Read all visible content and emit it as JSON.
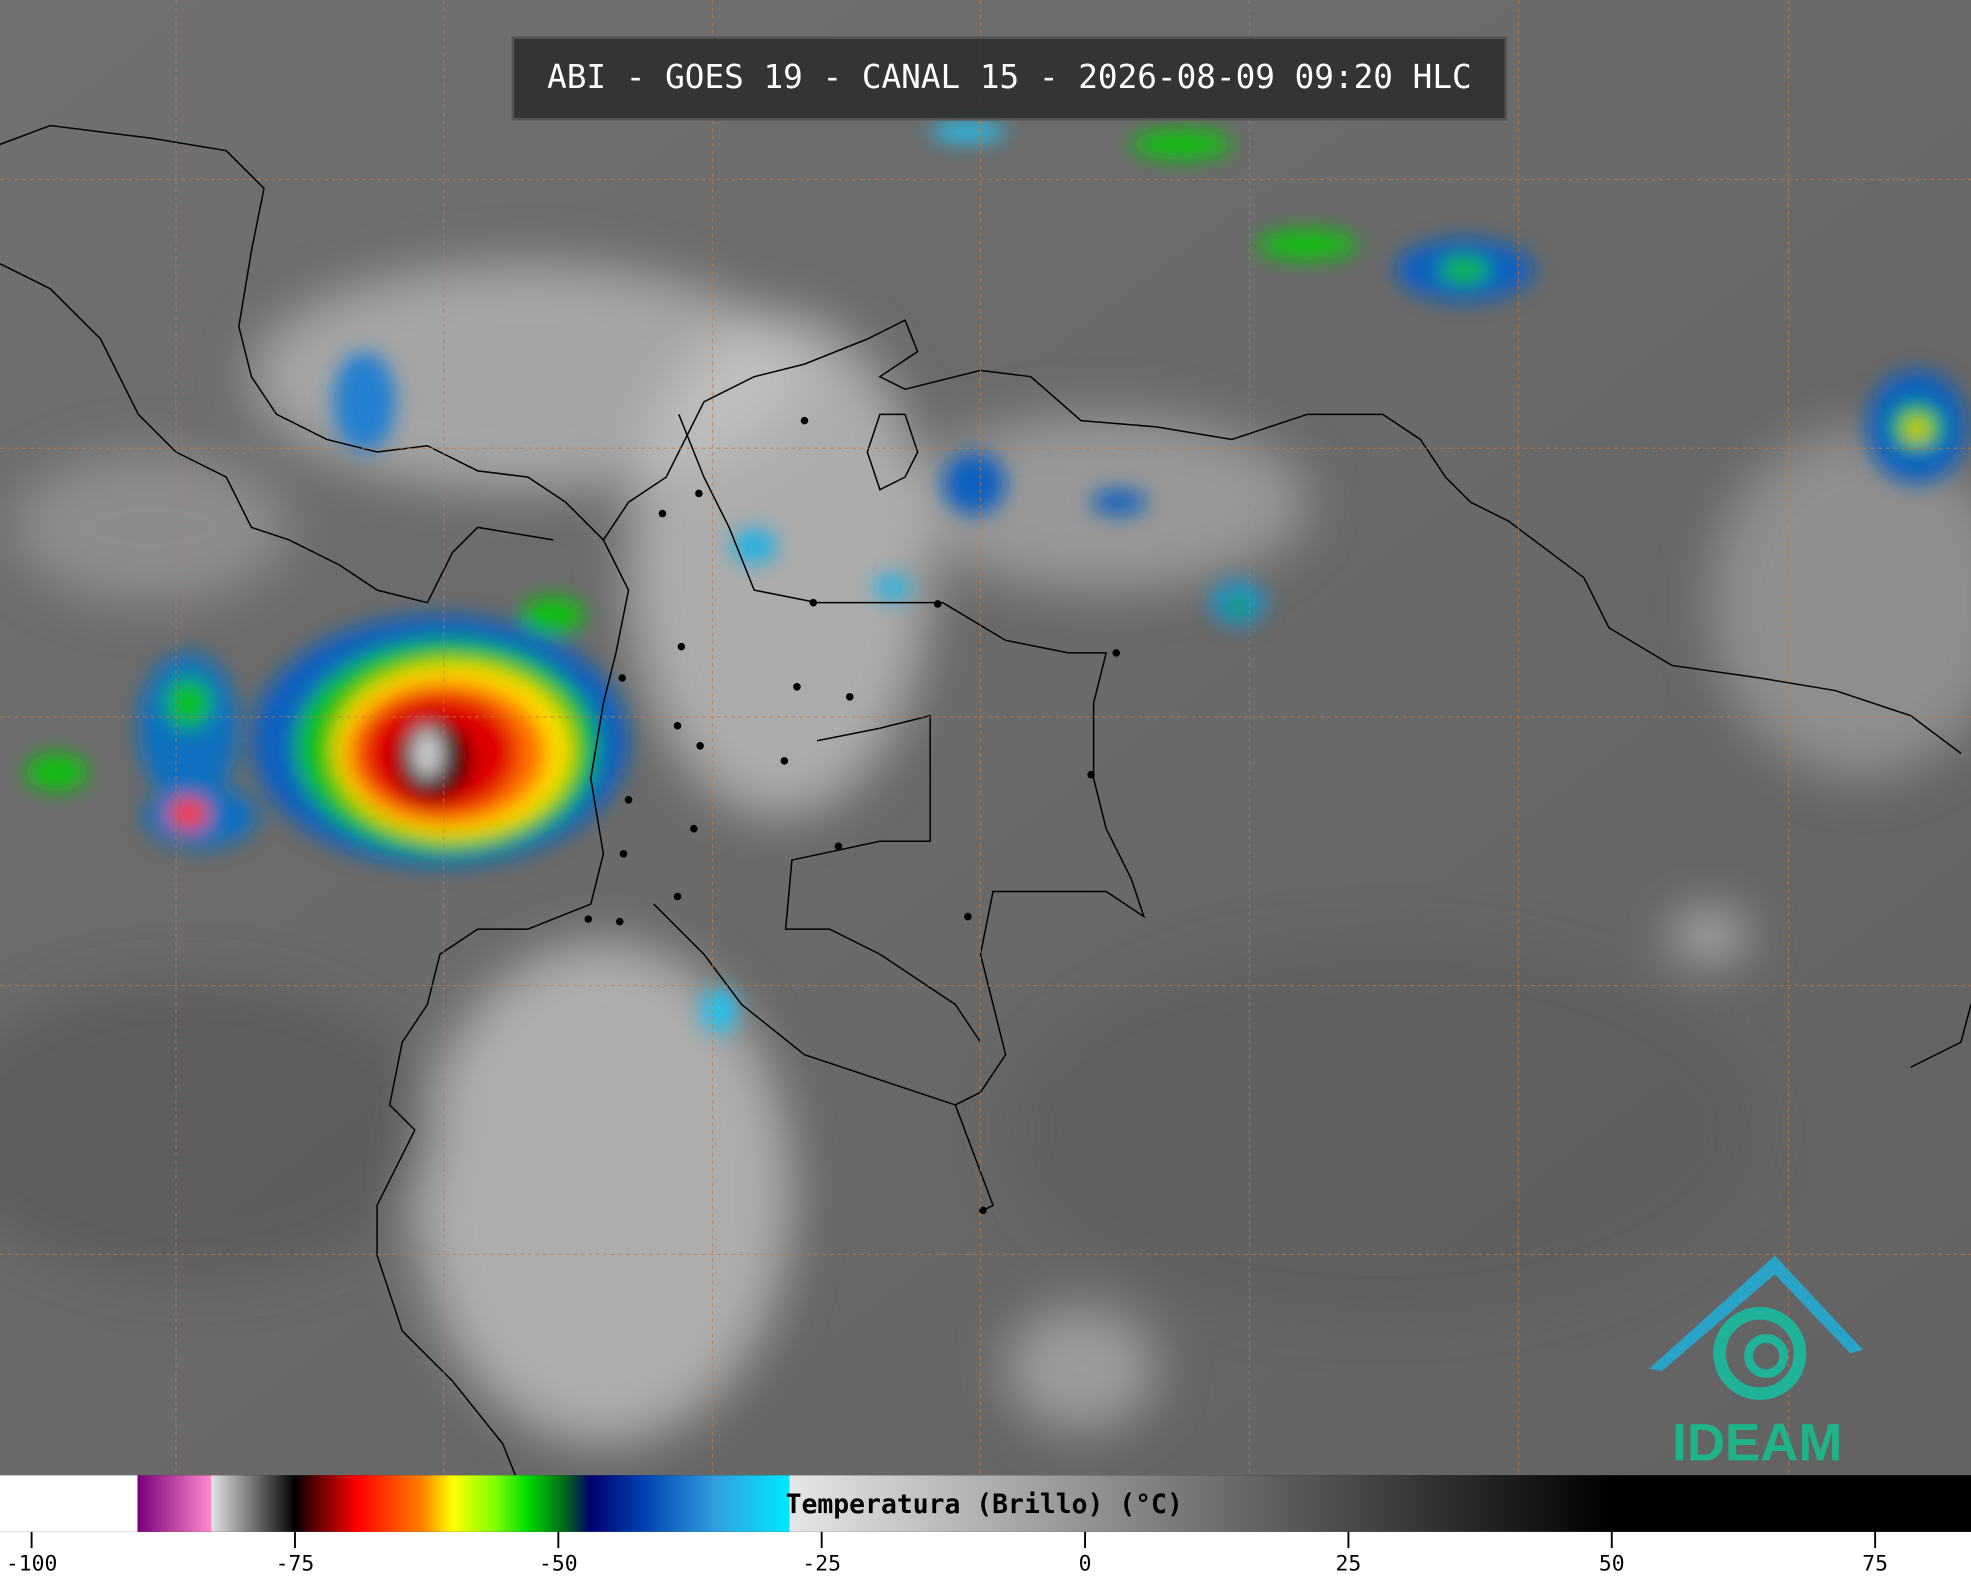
{
  "title": "ABI - GOES 19 - CANAL 15 - 2026-08-09 09:20 HLC",
  "logo": "IDEAM",
  "colorbar": {
    "label": "Temperatura (Brillo) (°C)",
    "xlim": [
      -103,
      84.1
    ],
    "ticks": [
      -100,
      -75,
      -50,
      -25,
      0,
      25,
      50,
      75
    ],
    "colormap": [
      {
        "value": -103,
        "color": "#ffffff"
      },
      {
        "value": -90,
        "color": "#ffffff"
      },
      {
        "value": -89.9,
        "color": "#7a007a"
      },
      {
        "value": -83,
        "color": "#ff88cc"
      },
      {
        "value": -82.9,
        "color": "#e0e0e0"
      },
      {
        "value": -76,
        "color": "#202020"
      },
      {
        "value": -75,
        "color": "#000000"
      },
      {
        "value": -73,
        "color": "#600000"
      },
      {
        "value": -69,
        "color": "#ff0000"
      },
      {
        "value": -63,
        "color": "#ff8000"
      },
      {
        "value": -60,
        "color": "#ffff00"
      },
      {
        "value": -56,
        "color": "#80ff00"
      },
      {
        "value": -53,
        "color": "#00dd00"
      },
      {
        "value": -49,
        "color": "#005a20"
      },
      {
        "value": -47,
        "color": "#000070"
      },
      {
        "value": -42,
        "color": "#0040b0"
      },
      {
        "value": -35,
        "color": "#30a0e0"
      },
      {
        "value": -28.1,
        "color": "#00e8ff"
      },
      {
        "value": -28,
        "color": "#e6e6e6"
      },
      {
        "value": 50,
        "color": "#000000"
      },
      {
        "value": 84.1,
        "color": "#000000"
      }
    ]
  }
}
